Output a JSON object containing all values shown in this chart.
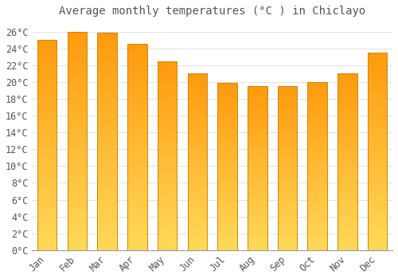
{
  "title": "Average monthly temperatures (°C ) in Chiclayo",
  "months": [
    "Jan",
    "Feb",
    "Mar",
    "Apr",
    "May",
    "Jun",
    "Jul",
    "Aug",
    "Sep",
    "Oct",
    "Nov",
    "Dec"
  ],
  "values": [
    25.0,
    26.0,
    25.9,
    24.5,
    22.5,
    21.0,
    19.9,
    19.5,
    19.5,
    20.0,
    21.0,
    23.5
  ],
  "bar_color_top": "#FFA500",
  "bar_color_bottom": "#FFD060",
  "bar_edge_color": "#CC8800",
  "background_color": "#FFFFFF",
  "grid_color": "#DDDDDD",
  "text_color": "#555555",
  "ylim": [
    0,
    27
  ],
  "ytick_step": 2,
  "title_fontsize": 10,
  "tick_fontsize": 8.5,
  "bar_width": 0.65
}
